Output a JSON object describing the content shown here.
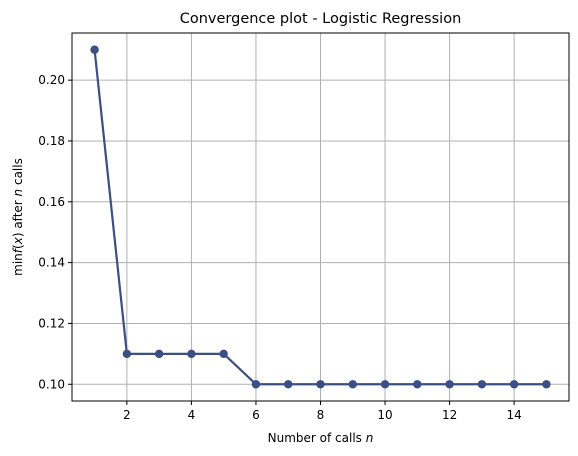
{
  "chart_data": {
    "type": "line",
    "title": "Convergence plot - Logistic Regression",
    "xlabel_prefix": "Number of calls ",
    "xlabel_var": "n",
    "ylabel_parts": {
      "pre": "min",
      "f": "f",
      "open": "(",
      "x": "x",
      "close": ")",
      "mid": " after ",
      "n": "n",
      "post": " calls"
    },
    "xlim": [
      0.3,
      15.7
    ],
    "ylim": [
      0.0945,
      0.2155
    ],
    "xticks": [
      2,
      4,
      6,
      8,
      10,
      12,
      14
    ],
    "yticks": [
      0.1,
      0.12,
      0.14,
      0.16,
      0.18,
      0.2
    ],
    "ytick_labels": [
      "0.10",
      "0.12",
      "0.14",
      "0.16",
      "0.18",
      "0.20"
    ],
    "grid": true,
    "series": [
      {
        "color": "#3b4f84",
        "x": [
          1,
          2,
          3,
          4,
          5,
          6,
          7,
          8,
          9,
          10,
          11,
          12,
          13,
          14,
          15
        ],
        "y": [
          0.21,
          0.11,
          0.11,
          0.11,
          0.11,
          0.1,
          0.1,
          0.1,
          0.1,
          0.1,
          0.1,
          0.1,
          0.1,
          0.1,
          0.1
        ]
      }
    ]
  }
}
